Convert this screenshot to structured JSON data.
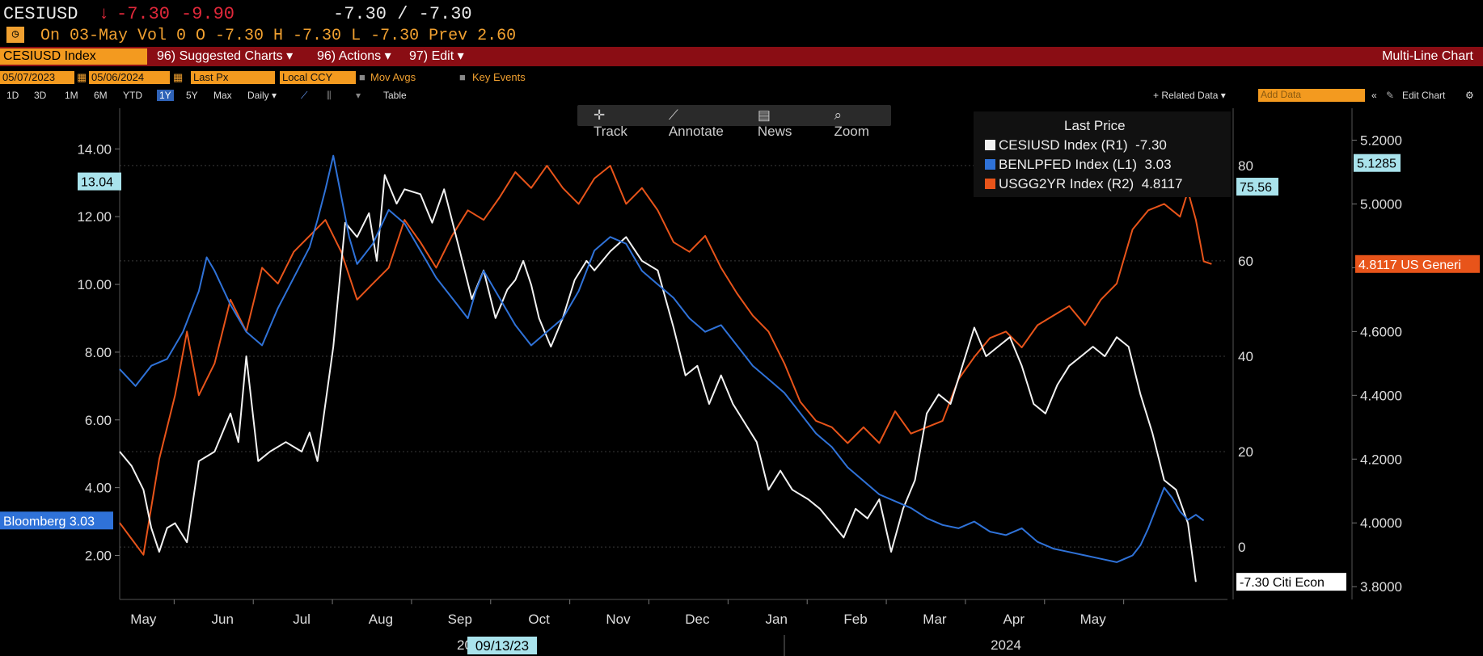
{
  "header": {
    "ticker": "CESIUSD",
    "arrow": "↓",
    "last": "-7.30",
    "change": "-9.90",
    "bid_ask": "-7.30 / -7.30",
    "quote_line": "On 03-May  Vol 0 O -7.30  H -7.30  L -7.30  Prev 2.60"
  },
  "toolbar": {
    "ticker_field": "CESIUSD Index",
    "suggested_charts": "96) Suggested Charts ▾",
    "actions": "96) Actions ▾",
    "edit": "97) Edit ▾",
    "chart_title": "Multi-Line Chart"
  },
  "settings": {
    "start_date": "05/07/2023",
    "end_date": "05/06/2024",
    "field": "Last Px",
    "currency": "Local CCY",
    "mov_avgs": "Mov Avgs",
    "key_events": "Key Events"
  },
  "periods": {
    "items": [
      "1D",
      "3D",
      "1M",
      "6M",
      "YTD",
      "1Y",
      "5Y",
      "Max",
      "Daily ▾"
    ],
    "selected": "1Y",
    "table": "Table",
    "related_data": "+ Related Data ▾",
    "add_data_placeholder": "Add Data",
    "edit_chart": "Edit Chart"
  },
  "chart_tools": [
    "Track",
    "Annotate",
    "News",
    "Zoom"
  ],
  "colors": {
    "cesi": "#f2f2f2",
    "benl": "#2f72d8",
    "usgg": "#e8541a",
    "header_bar": "#8a0d14",
    "orange": "#f39a1f"
  },
  "chart_data": {
    "type": "line",
    "x_month_labels": [
      "May",
      "Jun",
      "Jul",
      "Aug",
      "Sep",
      "Oct",
      "Nov",
      "Dec",
      "Jan",
      "Feb",
      "Mar",
      "Apr",
      "May"
    ],
    "x_years": [
      "2023",
      "2024"
    ],
    "crosshair_date": "09/13/23",
    "legend_title": "Last Price",
    "grid": true,
    "axes": {
      "L1": {
        "ticks": [
          "2.00",
          "4.00",
          "6.00",
          "8.00",
          "10.00",
          "12.00",
          "14.00"
        ],
        "ylim": [
          0.7,
          15.2
        ]
      },
      "R1": {
        "ticks": [
          "0",
          "20",
          "40",
          "60",
          "80"
        ],
        "ylim": [
          -11,
          92
        ]
      },
      "R2": {
        "ticks": [
          "3.8000",
          "4.0000",
          "4.2000",
          "4.4000",
          "4.6000",
          "4.8000",
          "5.0000",
          "5.2000"
        ],
        "ylim": [
          3.76,
          5.3
        ]
      }
    },
    "series": [
      {
        "name": "CESIUSD Index (R1)",
        "axis": "R1",
        "last": "-7.30",
        "tag": "-7.30 Citi Econ",
        "points": [
          [
            0,
            20
          ],
          [
            0.15,
            17
          ],
          [
            0.3,
            12
          ],
          [
            0.4,
            4
          ],
          [
            0.5,
            -1
          ],
          [
            0.6,
            4
          ],
          [
            0.7,
            5
          ],
          [
            0.85,
            1
          ],
          [
            1.0,
            18
          ],
          [
            1.2,
            20
          ],
          [
            1.4,
            28
          ],
          [
            1.5,
            22
          ],
          [
            1.6,
            40
          ],
          [
            1.75,
            18
          ],
          [
            1.9,
            20
          ],
          [
            2.1,
            22
          ],
          [
            2.3,
            20
          ],
          [
            2.4,
            24
          ],
          [
            2.5,
            18
          ],
          [
            2.7,
            42
          ],
          [
            2.85,
            68
          ],
          [
            3.0,
            65
          ],
          [
            3.15,
            70
          ],
          [
            3.25,
            60
          ],
          [
            3.35,
            78
          ],
          [
            3.5,
            72
          ],
          [
            3.6,
            75
          ],
          [
            3.8,
            74
          ],
          [
            3.95,
            68
          ],
          [
            4.1,
            75
          ],
          [
            4.3,
            62
          ],
          [
            4.45,
            52
          ],
          [
            4.6,
            58
          ],
          [
            4.75,
            48
          ],
          [
            4.9,
            54
          ],
          [
            5.0,
            56
          ],
          [
            5.1,
            60
          ],
          [
            5.2,
            55
          ],
          [
            5.3,
            48
          ],
          [
            5.45,
            42
          ],
          [
            5.6,
            48
          ],
          [
            5.75,
            56
          ],
          [
            5.9,
            60
          ],
          [
            6.0,
            58
          ],
          [
            6.2,
            62
          ],
          [
            6.4,
            65
          ],
          [
            6.6,
            60
          ],
          [
            6.8,
            58
          ],
          [
            7.0,
            46
          ],
          [
            7.15,
            36
          ],
          [
            7.3,
            38
          ],
          [
            7.45,
            30
          ],
          [
            7.6,
            36
          ],
          [
            7.75,
            30
          ],
          [
            7.9,
            26
          ],
          [
            8.05,
            22
          ],
          [
            8.2,
            12
          ],
          [
            8.35,
            16
          ],
          [
            8.5,
            12
          ],
          [
            8.7,
            10
          ],
          [
            8.85,
            8
          ],
          [
            9.0,
            5
          ],
          [
            9.15,
            2
          ],
          [
            9.3,
            8
          ],
          [
            9.45,
            6
          ],
          [
            9.6,
            10
          ],
          [
            9.75,
            -1
          ],
          [
            9.9,
            8
          ],
          [
            10.05,
            14
          ],
          [
            10.2,
            28
          ],
          [
            10.35,
            32
          ],
          [
            10.5,
            30
          ],
          [
            10.65,
            38
          ],
          [
            10.8,
            46
          ],
          [
            10.95,
            40
          ],
          [
            11.1,
            42
          ],
          [
            11.25,
            44
          ],
          [
            11.4,
            38
          ],
          [
            11.55,
            30
          ],
          [
            11.7,
            28
          ],
          [
            11.85,
            34
          ],
          [
            12.0,
            38
          ],
          [
            12.15,
            40
          ],
          [
            12.3,
            42
          ],
          [
            12.45,
            40
          ],
          [
            12.6,
            44
          ],
          [
            12.75,
            42
          ],
          [
            12.9,
            32
          ],
          [
            13.05,
            24
          ],
          [
            13.2,
            14
          ],
          [
            13.35,
            12
          ],
          [
            13.5,
            5
          ],
          [
            13.6,
            -7.3
          ]
        ]
      },
      {
        "name": "BENLPFED Index (L1)",
        "axis": "L1",
        "last": "3.03",
        "tag": "Bloomberg 3.03",
        "points": [
          [
            0,
            7.5
          ],
          [
            0.2,
            7.0
          ],
          [
            0.4,
            7.6
          ],
          [
            0.6,
            7.8
          ],
          [
            0.8,
            8.6
          ],
          [
            1.0,
            9.8
          ],
          [
            1.1,
            10.8
          ],
          [
            1.2,
            10.4
          ],
          [
            1.4,
            9.4
          ],
          [
            1.6,
            8.6
          ],
          [
            1.8,
            8.2
          ],
          [
            2.0,
            9.3
          ],
          [
            2.2,
            10.2
          ],
          [
            2.4,
            11.1
          ],
          [
            2.5,
            11.9
          ],
          [
            2.6,
            12.8
          ],
          [
            2.7,
            13.8
          ],
          [
            2.8,
            12.6
          ],
          [
            2.9,
            11.4
          ],
          [
            3.0,
            10.6
          ],
          [
            3.2,
            11.2
          ],
          [
            3.4,
            12.2
          ],
          [
            3.6,
            11.8
          ],
          [
            3.8,
            11.0
          ],
          [
            4.0,
            10.2
          ],
          [
            4.2,
            9.6
          ],
          [
            4.4,
            9.0
          ],
          [
            4.5,
            9.8
          ],
          [
            4.6,
            10.4
          ],
          [
            4.8,
            9.6
          ],
          [
            5.0,
            8.8
          ],
          [
            5.2,
            8.2
          ],
          [
            5.4,
            8.6
          ],
          [
            5.6,
            9.0
          ],
          [
            5.8,
            9.8
          ],
          [
            6.0,
            11.0
          ],
          [
            6.2,
            11.4
          ],
          [
            6.4,
            11.2
          ],
          [
            6.6,
            10.4
          ],
          [
            6.8,
            10.0
          ],
          [
            7.0,
            9.6
          ],
          [
            7.2,
            9.0
          ],
          [
            7.4,
            8.6
          ],
          [
            7.6,
            8.8
          ],
          [
            7.8,
            8.2
          ],
          [
            8.0,
            7.6
          ],
          [
            8.2,
            7.2
          ],
          [
            8.4,
            6.8
          ],
          [
            8.6,
            6.2
          ],
          [
            8.8,
            5.6
          ],
          [
            9.0,
            5.2
          ],
          [
            9.2,
            4.6
          ],
          [
            9.4,
            4.2
          ],
          [
            9.6,
            3.8
          ],
          [
            9.8,
            3.6
          ],
          [
            10.0,
            3.4
          ],
          [
            10.2,
            3.1
          ],
          [
            10.4,
            2.9
          ],
          [
            10.6,
            2.8
          ],
          [
            10.8,
            3.0
          ],
          [
            11.0,
            2.7
          ],
          [
            11.2,
            2.6
          ],
          [
            11.4,
            2.8
          ],
          [
            11.6,
            2.4
          ],
          [
            11.8,
            2.2
          ],
          [
            12.0,
            2.1
          ],
          [
            12.2,
            2.0
          ],
          [
            12.4,
            1.9
          ],
          [
            12.6,
            1.8
          ],
          [
            12.8,
            2.0
          ],
          [
            12.9,
            2.3
          ],
          [
            13.0,
            2.8
          ],
          [
            13.1,
            3.4
          ],
          [
            13.2,
            4.0
          ],
          [
            13.3,
            3.7
          ],
          [
            13.4,
            3.3
          ],
          [
            13.5,
            3.05
          ],
          [
            13.6,
            3.2
          ],
          [
            13.7,
            3.03
          ]
        ]
      },
      {
        "name": "USGG2YR Index (R2)",
        "axis": "R2",
        "last": "4.8117",
        "tag": "4.8117 US Generi",
        "points": [
          [
            0,
            4.0
          ],
          [
            0.15,
            3.95
          ],
          [
            0.3,
            3.9
          ],
          [
            0.5,
            4.2
          ],
          [
            0.7,
            4.4
          ],
          [
            0.85,
            4.6
          ],
          [
            1.0,
            4.4
          ],
          [
            1.2,
            4.5
          ],
          [
            1.4,
            4.7
          ],
          [
            1.6,
            4.6
          ],
          [
            1.8,
            4.8
          ],
          [
            2.0,
            4.75
          ],
          [
            2.2,
            4.85
          ],
          [
            2.4,
            4.9
          ],
          [
            2.6,
            4.95
          ],
          [
            2.8,
            4.85
          ],
          [
            3.0,
            4.7
          ],
          [
            3.2,
            4.75
          ],
          [
            3.4,
            4.8
          ],
          [
            3.6,
            4.95
          ],
          [
            3.8,
            4.88
          ],
          [
            4.0,
            4.8
          ],
          [
            4.2,
            4.9
          ],
          [
            4.4,
            4.98
          ],
          [
            4.6,
            4.95
          ],
          [
            4.8,
            5.02
          ],
          [
            5.0,
            5.1
          ],
          [
            5.2,
            5.05
          ],
          [
            5.4,
            5.12
          ],
          [
            5.6,
            5.05
          ],
          [
            5.8,
            5.0
          ],
          [
            6.0,
            5.08
          ],
          [
            6.2,
            5.12
          ],
          [
            6.4,
            5.0
          ],
          [
            6.6,
            5.05
          ],
          [
            6.8,
            4.98
          ],
          [
            7.0,
            4.88
          ],
          [
            7.2,
            4.85
          ],
          [
            7.4,
            4.9
          ],
          [
            7.6,
            4.8
          ],
          [
            7.8,
            4.72
          ],
          [
            8.0,
            4.65
          ],
          [
            8.2,
            4.6
          ],
          [
            8.4,
            4.5
          ],
          [
            8.6,
            4.38
          ],
          [
            8.8,
            4.32
          ],
          [
            9.0,
            4.3
          ],
          [
            9.2,
            4.25
          ],
          [
            9.4,
            4.3
          ],
          [
            9.6,
            4.25
          ],
          [
            9.8,
            4.35
          ],
          [
            10.0,
            4.28
          ],
          [
            10.2,
            4.3
          ],
          [
            10.4,
            4.32
          ],
          [
            10.6,
            4.45
          ],
          [
            10.8,
            4.52
          ],
          [
            11.0,
            4.58
          ],
          [
            11.2,
            4.6
          ],
          [
            11.4,
            4.55
          ],
          [
            11.6,
            4.62
          ],
          [
            11.8,
            4.65
          ],
          [
            12.0,
            4.68
          ],
          [
            12.2,
            4.62
          ],
          [
            12.4,
            4.7
          ],
          [
            12.6,
            4.75
          ],
          [
            12.8,
            4.92
          ],
          [
            13.0,
            4.98
          ],
          [
            13.2,
            5.0
          ],
          [
            13.4,
            4.96
          ],
          [
            13.5,
            5.04
          ],
          [
            13.6,
            4.95
          ],
          [
            13.7,
            4.82
          ],
          [
            13.8,
            4.8117
          ]
        ]
      }
    ]
  },
  "value_tags": {
    "left_top": "13.04",
    "r1_top": "75.56",
    "r2_top": "5.1285"
  }
}
